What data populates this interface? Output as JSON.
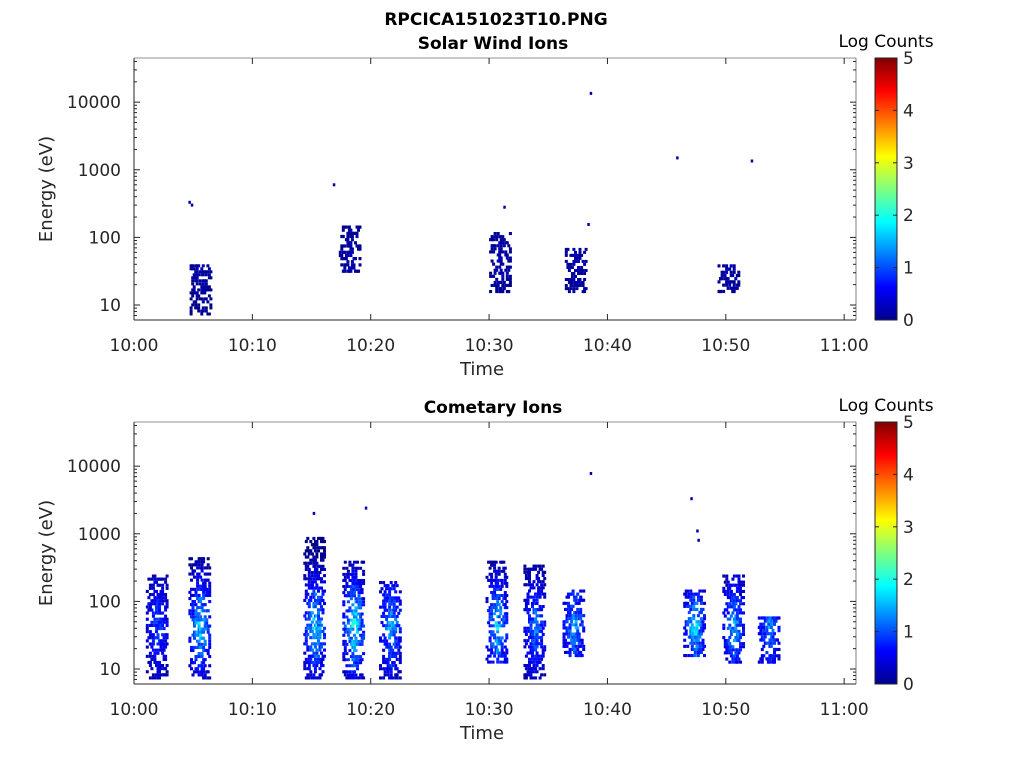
{
  "figure": {
    "title": "RPCICA151023T10.PNG"
  },
  "colorbar": {
    "label": "Log Counts",
    "ticks": [
      "0",
      "1",
      "2",
      "3",
      "4",
      "5"
    ],
    "range": [
      0,
      5
    ],
    "colormap": "jet"
  },
  "chart_data": [
    {
      "type": "heatmap",
      "title": "Solar Wind Ions",
      "xlabel": "Time",
      "ylabel": "Energy (eV)",
      "x_ticks": [
        "10:00",
        "10:10",
        "10:20",
        "10:30",
        "10:40",
        "10:50",
        "11:00"
      ],
      "y_ticks": [
        "10",
        "100",
        "1000",
        "10000"
      ],
      "y_scale": "log",
      "ylim": [
        6,
        45000
      ],
      "xlim_minutes_after_10": [
        0,
        61
      ],
      "colorbar_label": "Log Counts",
      "clusters": [
        {
          "t": 5.6,
          "e_low": 7,
          "e_high": 40,
          "peak": 0.3
        },
        {
          "t": 18.2,
          "e_low": 30,
          "e_high": 150,
          "peak": 0.3
        },
        {
          "t": 30.9,
          "e_low": 15,
          "e_high": 120,
          "peak": 0.3
        },
        {
          "t": 37.3,
          "e_low": 15,
          "e_high": 70,
          "peak": 0.3
        },
        {
          "t": 50.2,
          "e_low": 15,
          "e_high": 40,
          "peak": 0.3
        }
      ],
      "dots": [
        {
          "t": 4.6,
          "e": 330
        },
        {
          "t": 4.8,
          "e": 300
        },
        {
          "t": 16.8,
          "e": 600
        },
        {
          "t": 38.5,
          "e": 13500
        },
        {
          "t": 45.8,
          "e": 1500
        },
        {
          "t": 52.1,
          "e": 1350
        },
        {
          "t": 38.3,
          "e": 155
        },
        {
          "t": 31.2,
          "e": 280
        }
      ]
    },
    {
      "type": "heatmap",
      "title": "Cometary Ions",
      "xlabel": "Time",
      "ylabel": "Energy (eV)",
      "x_ticks": [
        "10:00",
        "10:10",
        "10:20",
        "10:30",
        "10:40",
        "10:50",
        "11:00"
      ],
      "y_ticks": [
        "10",
        "100",
        "1000",
        "10000"
      ],
      "y_scale": "log",
      "ylim": [
        6,
        45000
      ],
      "xlim_minutes_after_10": [
        0,
        61
      ],
      "colorbar_label": "Log Counts",
      "clusters": [
        {
          "t": 1.9,
          "e_low": 7,
          "e_high": 250,
          "peak": 1.2
        },
        {
          "t": 5.5,
          "e_low": 7,
          "e_high": 450,
          "peak": 2.0
        },
        {
          "t": 15.2,
          "e_low": 7,
          "e_high": 900,
          "peak": 2.0
        },
        {
          "t": 18.5,
          "e_low": 7,
          "e_high": 400,
          "peak": 2.2
        },
        {
          "t": 21.6,
          "e_low": 7,
          "e_high": 200,
          "peak": 1.8
        },
        {
          "t": 30.6,
          "e_low": 12,
          "e_high": 400,
          "peak": 1.9
        },
        {
          "t": 33.8,
          "e_low": 7,
          "e_high": 350,
          "peak": 1.5
        },
        {
          "t": 37.1,
          "e_low": 15,
          "e_high": 150,
          "peak": 1.7
        },
        {
          "t": 47.3,
          "e_low": 15,
          "e_high": 150,
          "peak": 1.9
        },
        {
          "t": 50.6,
          "e_low": 12,
          "e_high": 250,
          "peak": 1.7
        },
        {
          "t": 53.6,
          "e_low": 12,
          "e_high": 60,
          "peak": 1.5
        }
      ],
      "dots": [
        {
          "t": 38.5,
          "e": 7800
        },
        {
          "t": 15.1,
          "e": 2000
        },
        {
          "t": 19.5,
          "e": 2400
        },
        {
          "t": 47.0,
          "e": 3300
        },
        {
          "t": 47.5,
          "e": 1100
        },
        {
          "t": 47.6,
          "e": 800
        }
      ]
    }
  ]
}
